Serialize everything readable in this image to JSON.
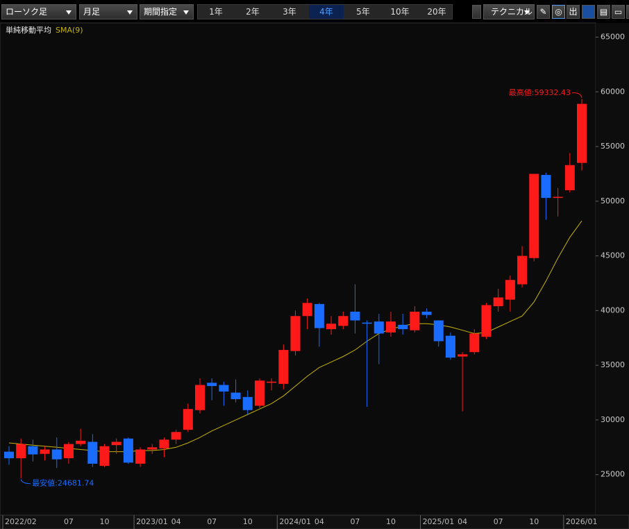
{
  "toolbar": {
    "chart_kind": "ローソク足",
    "interval": "月足",
    "range_mode": "期間指定",
    "periods": [
      "1年",
      "2年",
      "3年",
      "4年",
      "5年",
      "10年",
      "20年"
    ],
    "selected_period": "4年",
    "technical": "テクニカル",
    "export_icon": "出"
  },
  "chart_data": {
    "type": "candlestick",
    "indicator_title": "単純移動平均",
    "categories": [
      "2022/02",
      null,
      null,
      null,
      null,
      "07",
      null,
      null,
      "10",
      null,
      null,
      "2023/01",
      null,
      null,
      "04",
      null,
      null,
      "07",
      null,
      null,
      "10",
      null,
      null,
      "2024/01",
      null,
      null,
      "04",
      null,
      null,
      "07",
      null,
      null,
      "10",
      null,
      null,
      "2025/01",
      null,
      null,
      "04",
      null,
      null,
      "07",
      null,
      null,
      "10",
      null,
      null,
      "2026/01",
      null
    ],
    "open": [
      27100,
      26500,
      27600,
      26900,
      27300,
      26500,
      27800,
      28000,
      25800,
      27700,
      28300,
      26000,
      27300,
      27400,
      28200,
      29100,
      30900,
      33400,
      33200,
      32500,
      32100,
      31300,
      33400,
      33300,
      36300,
      39500,
      40600,
      38300,
      38600,
      39900,
      38900,
      39000,
      38000,
      38700,
      38200,
      39900,
      39100,
      37700,
      35800,
      36200,
      37600,
      40400,
      41000,
      42400,
      44800,
      52400,
      50300,
      51000,
      53500
    ],
    "high": [
      27600,
      28300,
      28200,
      27600,
      28400,
      28000,
      29200,
      28700,
      27800,
      28300,
      28400,
      27500,
      27800,
      28400,
      29100,
      31500,
      33800,
      33800,
      33500,
      33700,
      32700,
      33800,
      33800,
      36900,
      40000,
      41100,
      40700,
      39500,
      39900,
      42400,
      39100,
      39700,
      39900,
      39700,
      40400,
      40200,
      39100,
      38000,
      36200,
      38300,
      40700,
      42000,
      43200,
      45900,
      52500,
      52600,
      51200,
      54400,
      59332.43
    ],
    "low": [
      25900,
      24681.74,
      26200,
      26300,
      25600,
      26000,
      27600,
      25700,
      25700,
      26900,
      26000,
      25700,
      26900,
      26600,
      27800,
      28900,
      30600,
      31800,
      31300,
      31600,
      30500,
      31100,
      32700,
      32800,
      35900,
      38300,
      36700,
      37800,
      38300,
      37900,
      31200,
      35100,
      37600,
      37800,
      38000,
      39300,
      36700,
      35500,
      30792,
      36000,
      37400,
      39900,
      39900,
      42100,
      44500,
      48300,
      48600,
      50800,
      52800
    ],
    "close": [
      26500,
      27800,
      26850,
      27300,
      26400,
      27800,
      28100,
      26000,
      27600,
      28000,
      26100,
      27300,
      27500,
      28200,
      28900,
      31000,
      33200,
      33100,
      32600,
      31900,
      30900,
      33600,
      33500,
      36400,
      39500,
      40700,
      38400,
      38800,
      39500,
      39100,
      38800,
      37900,
      39000,
      38300,
      39900,
      39600,
      37200,
      35700,
      36000,
      37900,
      40500,
      41200,
      42800,
      45000,
      52500,
      50300,
      50400,
      53300,
      58900
    ],
    "up_color": "#ff1a1a",
    "down_color": "#1a6cff",
    "sma": {
      "name": "SMA(9)",
      "color": "#c8b400",
      "values": [
        27900,
        27800,
        27700,
        27600,
        27500,
        27400,
        27300,
        27200,
        27100,
        27100,
        27100,
        27200,
        27200,
        27300,
        27500,
        27900,
        28400,
        29000,
        29500,
        30000,
        30500,
        31000,
        31500,
        32200,
        33100,
        34000,
        34800,
        35300,
        35800,
        36400,
        37200,
        37900,
        38300,
        38600,
        38800,
        38800,
        38700,
        38500,
        38200,
        37900,
        38000,
        38500,
        39000,
        39500,
        40800,
        42700,
        44800,
        46700,
        48200
      ]
    },
    "max_label": "最高値:59332.43",
    "min_label": "最安値:24681.74",
    "ylim": [
      21300,
      66300
    ],
    "yticks": [
      25000,
      30000,
      35000,
      40000,
      45000,
      50000,
      55000,
      60000,
      65000
    ]
  }
}
